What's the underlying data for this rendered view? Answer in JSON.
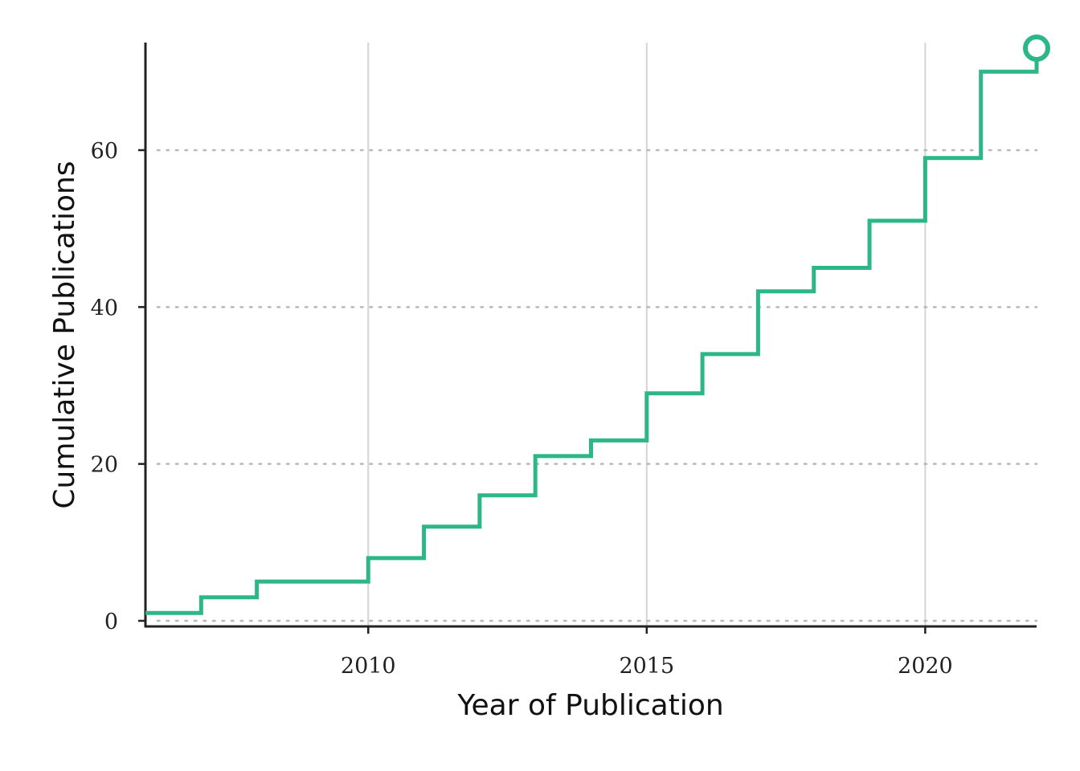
{
  "chart_data": {
    "type": "line",
    "step": "post",
    "title": "",
    "xlabel": "Year of Publication",
    "ylabel": "Cumulative Publications",
    "xlim": [
      2006,
      2022
    ],
    "ylim": [
      0,
      73
    ],
    "x_ticks": [
      2010,
      2015,
      2020
    ],
    "y_ticks": [
      0,
      20,
      40,
      60
    ],
    "grid": {
      "x": "solid",
      "y": "dotted"
    },
    "series": [
      {
        "color": "#2db789",
        "x": [
          2006,
          2007,
          2008,
          2009,
          2010,
          2011,
          2012,
          2013,
          2014,
          2015,
          2016,
          2017,
          2018,
          2019,
          2020,
          2021,
          2022
        ],
        "values": [
          1,
          3,
          5,
          5,
          8,
          12,
          16,
          21,
          23,
          29,
          34,
          42,
          45,
          51,
          59,
          70,
          73
        ]
      }
    ],
    "end_marker": {
      "x": 2022,
      "y": 73,
      "shape": "open-circle"
    }
  },
  "colors": {
    "line": "#2db789",
    "axis": "#222222",
    "grid_x": "#d4d4d4",
    "grid_y": "#b8b8b8"
  }
}
